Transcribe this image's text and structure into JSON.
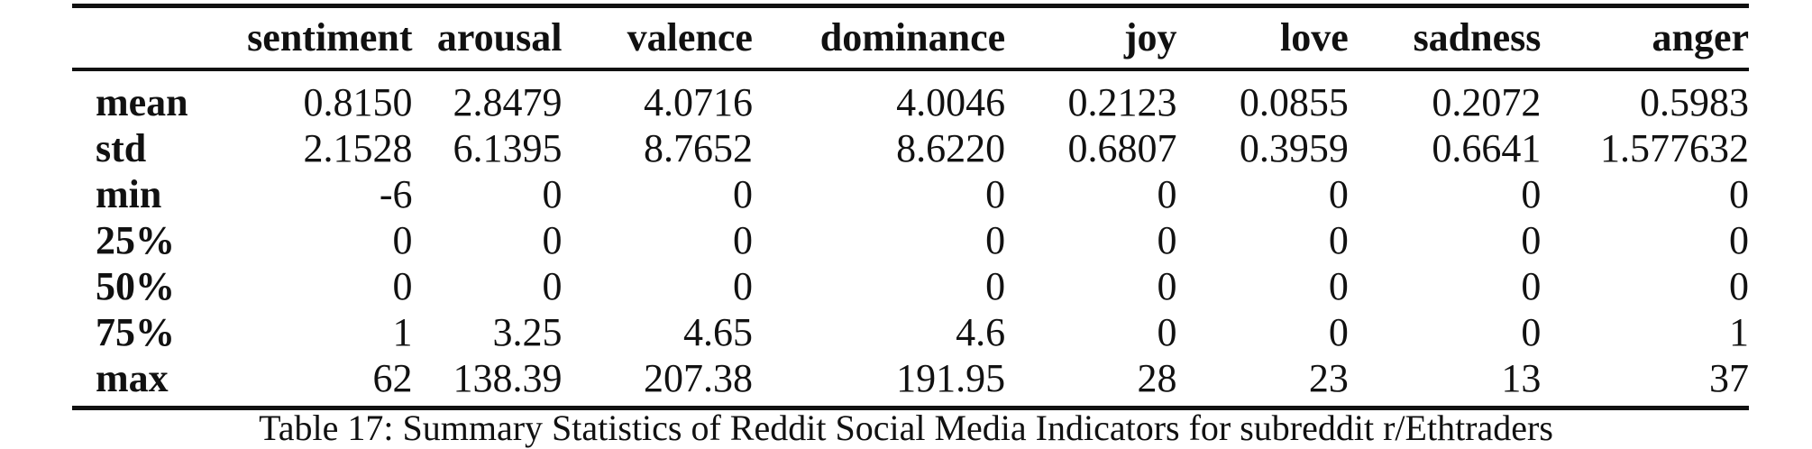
{
  "table": {
    "columns": [
      "",
      "sentiment",
      "arousal",
      "valence",
      "dominance",
      "joy",
      "love",
      "sadness",
      "anger"
    ],
    "rows": [
      {
        "label": "mean",
        "values": [
          "0.8150",
          "2.8479",
          "4.0716",
          "4.0046",
          "0.2123",
          "0.0855",
          "0.2072",
          "0.5983"
        ]
      },
      {
        "label": "std",
        "values": [
          "2.1528",
          "6.1395",
          "8.7652",
          "8.6220",
          "0.6807",
          "0.3959",
          "0.6641",
          "1.577632"
        ]
      },
      {
        "label": "min",
        "values": [
          "-6",
          "0",
          "0",
          "0",
          "0",
          "0",
          "0",
          "0"
        ]
      },
      {
        "label": "25%",
        "values": [
          "0",
          "0",
          "0",
          "0",
          "0",
          "0",
          "0",
          "0"
        ]
      },
      {
        "label": "50%",
        "values": [
          "0",
          "0",
          "0",
          "0",
          "0",
          "0",
          "0",
          "0"
        ]
      },
      {
        "label": "75%",
        "values": [
          "1",
          "3.25",
          "4.65",
          "4.6",
          "0",
          "0",
          "0",
          "1"
        ]
      },
      {
        "label": "max",
        "values": [
          "62",
          "138.39",
          "207.38",
          "191.95",
          "28",
          "23",
          "13",
          "37"
        ]
      }
    ]
  },
  "caption": "Table 17: Summary Statistics of Reddit Social Media Indicators for subreddit r/Ethtraders"
}
